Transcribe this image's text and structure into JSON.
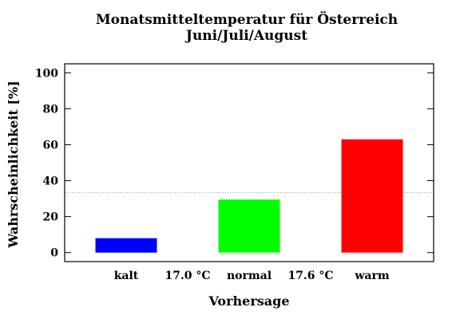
{
  "chart_data": {
    "type": "bar",
    "title": [
      "Monatsmitteltemperatur für Österreich",
      "Juni/Juli/August"
    ],
    "xlabel": "Vorhersage",
    "ylabel": "Wahrscheinlichkeit [%]",
    "ylim": [
      -5,
      105
    ],
    "yticks": [
      0,
      20,
      40,
      60,
      80,
      100
    ],
    "categories": [
      "kalt",
      "normal",
      "warm"
    ],
    "values": [
      8,
      29.5,
      63
    ],
    "colors": [
      "#0000ff",
      "#00ff00",
      "#ff0000"
    ],
    "thresholds": [
      "17.0 °C",
      "17.6 °C"
    ],
    "reference_line": 33.3,
    "grid": false
  }
}
